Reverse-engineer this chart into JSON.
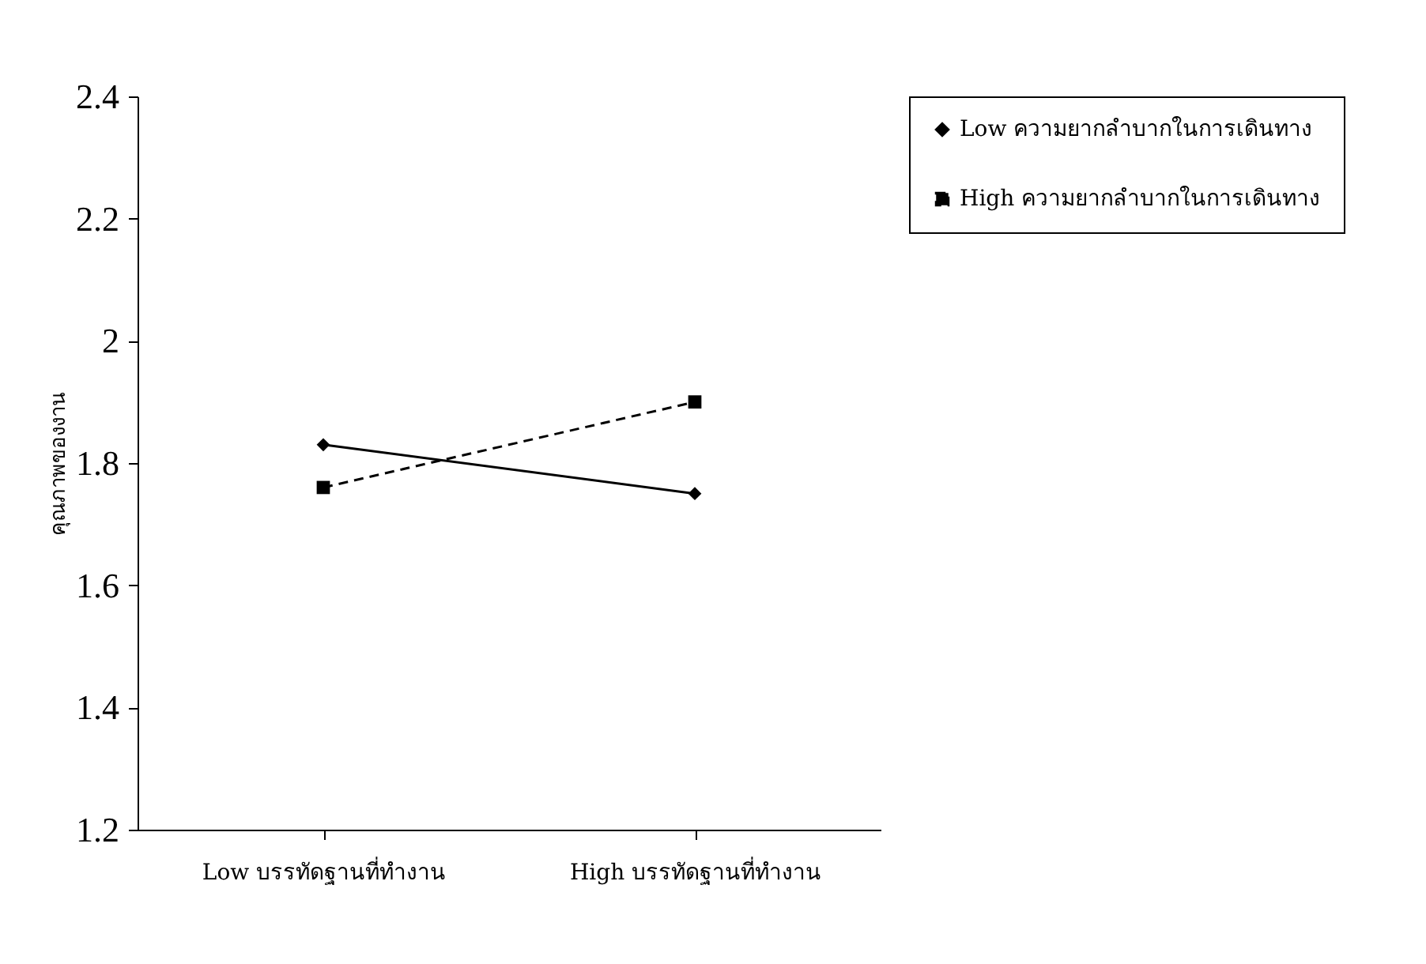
{
  "chart_data": {
    "type": "line",
    "ylabel": "คุณภาพของงาน",
    "categories": [
      "Low บรรทัดฐานที่ทำงาน",
      "High บรรทัดฐานที่ทำงาน"
    ],
    "series": [
      {
        "name": "Low ความยากลำบากในการเดินทาง",
        "color": "#000000",
        "values": [
          1.83,
          1.75
        ],
        "marker": "diamond",
        "line_style": "solid"
      },
      {
        "name": "High ความยากลำบากในการเดินทาง",
        "color": "#000000",
        "values": [
          1.76,
          1.9
        ],
        "marker": "square",
        "line_style": "dashed"
      }
    ],
    "ylim": [
      1.2,
      2.4
    ],
    "yticks": [
      1.2,
      1.4,
      1.6,
      1.8,
      2,
      2.2,
      2.4
    ],
    "grid": false,
    "legend": "right"
  }
}
